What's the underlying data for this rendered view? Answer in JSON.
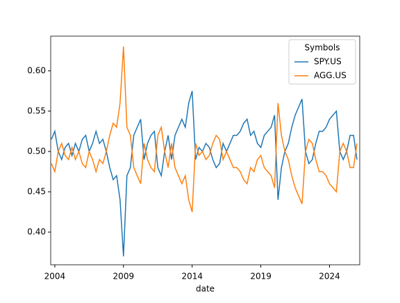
{
  "chart_data": {
    "type": "line",
    "xlabel": "date",
    "legend_title": "Symbols",
    "legend_loc": "upper right",
    "grid": false,
    "x": [
      2003.75,
      2004.0,
      2004.25,
      2004.5,
      2004.75,
      2005.0,
      2005.25,
      2005.5,
      2005.75,
      2006.0,
      2006.25,
      2006.5,
      2006.75,
      2007.0,
      2007.25,
      2007.5,
      2007.75,
      2008.0,
      2008.25,
      2008.5,
      2008.75,
      2009.0,
      2009.25,
      2009.5,
      2009.75,
      2010.0,
      2010.25,
      2010.5,
      2010.75,
      2011.0,
      2011.25,
      2011.5,
      2011.75,
      2012.0,
      2012.25,
      2012.5,
      2012.75,
      2013.0,
      2013.25,
      2013.5,
      2013.75,
      2014.0,
      2014.25,
      2014.5,
      2014.75,
      2015.0,
      2015.25,
      2015.5,
      2015.75,
      2016.0,
      2016.25,
      2016.5,
      2016.75,
      2017.0,
      2017.25,
      2017.5,
      2017.75,
      2018.0,
      2018.25,
      2018.5,
      2018.75,
      2019.0,
      2019.25,
      2019.5,
      2019.75,
      2020.0,
      2020.25,
      2020.5,
      2020.75,
      2021.0,
      2021.25,
      2021.5,
      2021.75,
      2022.0,
      2022.25,
      2022.5,
      2022.75,
      2023.0,
      2023.25,
      2023.5,
      2023.75,
      2024.0,
      2024.25,
      2024.5,
      2024.75,
      2025.0,
      2025.25,
      2025.5,
      2025.75,
      2026.0
    ],
    "series": [
      {
        "name": "SPY.US",
        "color": "#1f77b4",
        "values": [
          0.515,
          0.525,
          0.5,
          0.49,
          0.505,
          0.51,
          0.495,
          0.51,
          0.5,
          0.515,
          0.52,
          0.5,
          0.51,
          0.525,
          0.51,
          0.515,
          0.5,
          0.48,
          0.465,
          0.47,
          0.44,
          0.37,
          0.47,
          0.48,
          0.52,
          0.53,
          0.54,
          0.49,
          0.51,
          0.52,
          0.525,
          0.48,
          0.47,
          0.5,
          0.52,
          0.49,
          0.52,
          0.53,
          0.54,
          0.53,
          0.56,
          0.575,
          0.49,
          0.505,
          0.5,
          0.51,
          0.505,
          0.49,
          0.48,
          0.485,
          0.51,
          0.5,
          0.51,
          0.52,
          0.52,
          0.525,
          0.535,
          0.54,
          0.52,
          0.525,
          0.51,
          0.505,
          0.52,
          0.525,
          0.53,
          0.545,
          0.44,
          0.48,
          0.5,
          0.51,
          0.53,
          0.545,
          0.555,
          0.565,
          0.5,
          0.485,
          0.49,
          0.51,
          0.525,
          0.525,
          0.53,
          0.54,
          0.545,
          0.55,
          0.5,
          0.49,
          0.5,
          0.52,
          0.52,
          0.49
        ]
      },
      {
        "name": "AGG.US",
        "color": "#ff7f0e",
        "values": [
          0.485,
          0.475,
          0.5,
          0.51,
          0.495,
          0.49,
          0.505,
          0.49,
          0.5,
          0.485,
          0.48,
          0.5,
          0.49,
          0.475,
          0.49,
          0.485,
          0.5,
          0.52,
          0.535,
          0.53,
          0.56,
          0.63,
          0.53,
          0.52,
          0.48,
          0.47,
          0.46,
          0.51,
          0.49,
          0.48,
          0.475,
          0.52,
          0.53,
          0.5,
          0.48,
          0.51,
          0.48,
          0.47,
          0.46,
          0.47,
          0.44,
          0.425,
          0.51,
          0.495,
          0.5,
          0.49,
          0.495,
          0.51,
          0.52,
          0.515,
          0.49,
          0.5,
          0.49,
          0.48,
          0.48,
          0.475,
          0.465,
          0.46,
          0.48,
          0.475,
          0.49,
          0.495,
          0.48,
          0.475,
          0.47,
          0.455,
          0.56,
          0.52,
          0.5,
          0.49,
          0.47,
          0.455,
          0.445,
          0.435,
          0.5,
          0.515,
          0.51,
          0.49,
          0.475,
          0.475,
          0.47,
          0.46,
          0.455,
          0.45,
          0.5,
          0.51,
          0.5,
          0.48,
          0.48,
          0.51
        ]
      }
    ],
    "xlim": [
      2003.7,
      2026.2
    ],
    "xticks": [
      2004,
      2009,
      2014,
      2019,
      2024
    ],
    "ylim": [
      0.3595,
      0.643
    ],
    "yticks": [
      {
        "value": 0.4,
        "label": "0.40"
      },
      0.45,
      {
        "value": 0.5,
        "label": "0.50"
      },
      0.55,
      {
        "value": 0.6,
        "label": "0.60"
      }
    ]
  }
}
